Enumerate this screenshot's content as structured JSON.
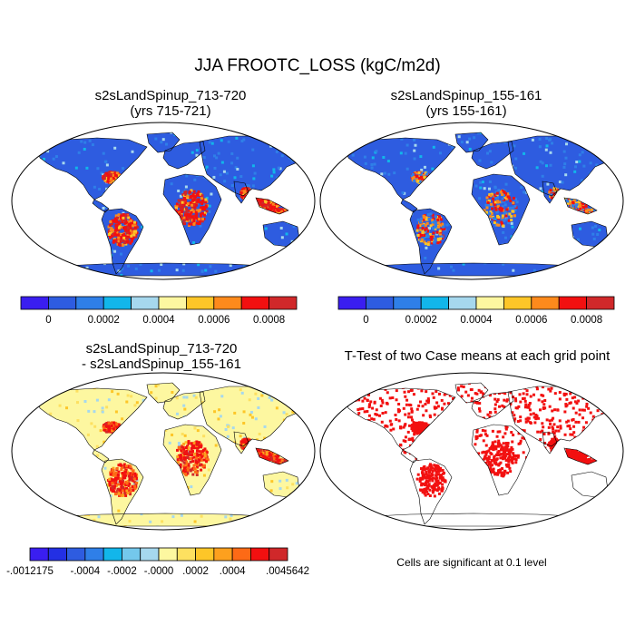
{
  "main_title": "JJA FROOTC_LOSS (kgC/m2d)",
  "panels": {
    "p1": {
      "title_line1": "s2sLandSpinup_713-720",
      "title_line2": "(yrs 715-721)"
    },
    "p2": {
      "title_line1": "s2sLandSpinup_155-161",
      "title_line2": "(yrs 155-161)"
    },
    "p3": {
      "title_line1": "s2sLandSpinup_713-720",
      "title_line2": "- s2sLandSpinup_155-161"
    },
    "p4": {
      "title_line1": "T-Test of two Case means at each grid point",
      "note": "Cells are significant at 0.1 level"
    }
  },
  "colorbar_top": {
    "colors": [
      "#3a1ef0",
      "#2e5ce0",
      "#2f7fe8",
      "#12b6ea",
      "#a6d8ee",
      "#fdf7a0",
      "#fdc628",
      "#fd8a1c",
      "#f21010",
      "#d0282a"
    ],
    "ticks": [
      "0",
      "0.0002",
      "0.0004",
      "0.0006",
      "0.0008"
    ]
  },
  "colorbar_diff": {
    "colors": [
      "#3a1ef0",
      "#2330e4",
      "#2e5ce0",
      "#2f7fe8",
      "#12b6ea",
      "#74c8ec",
      "#a6d8ee",
      "#fdf7a0",
      "#fde060",
      "#fdc628",
      "#fda01e",
      "#fd6a16",
      "#f21010",
      "#d0282a"
    ],
    "ticks": [
      "-.0012175",
      "-.0004",
      "-.0002",
      "-.0000",
      ".0002",
      ".0004",
      ".0045642"
    ]
  },
  "map_colors": {
    "ocean": "#ffffff",
    "land_base_abs": "#2e5ce0",
    "land_base_diff": "#fdf7a0",
    "significant": "#f21010"
  }
}
